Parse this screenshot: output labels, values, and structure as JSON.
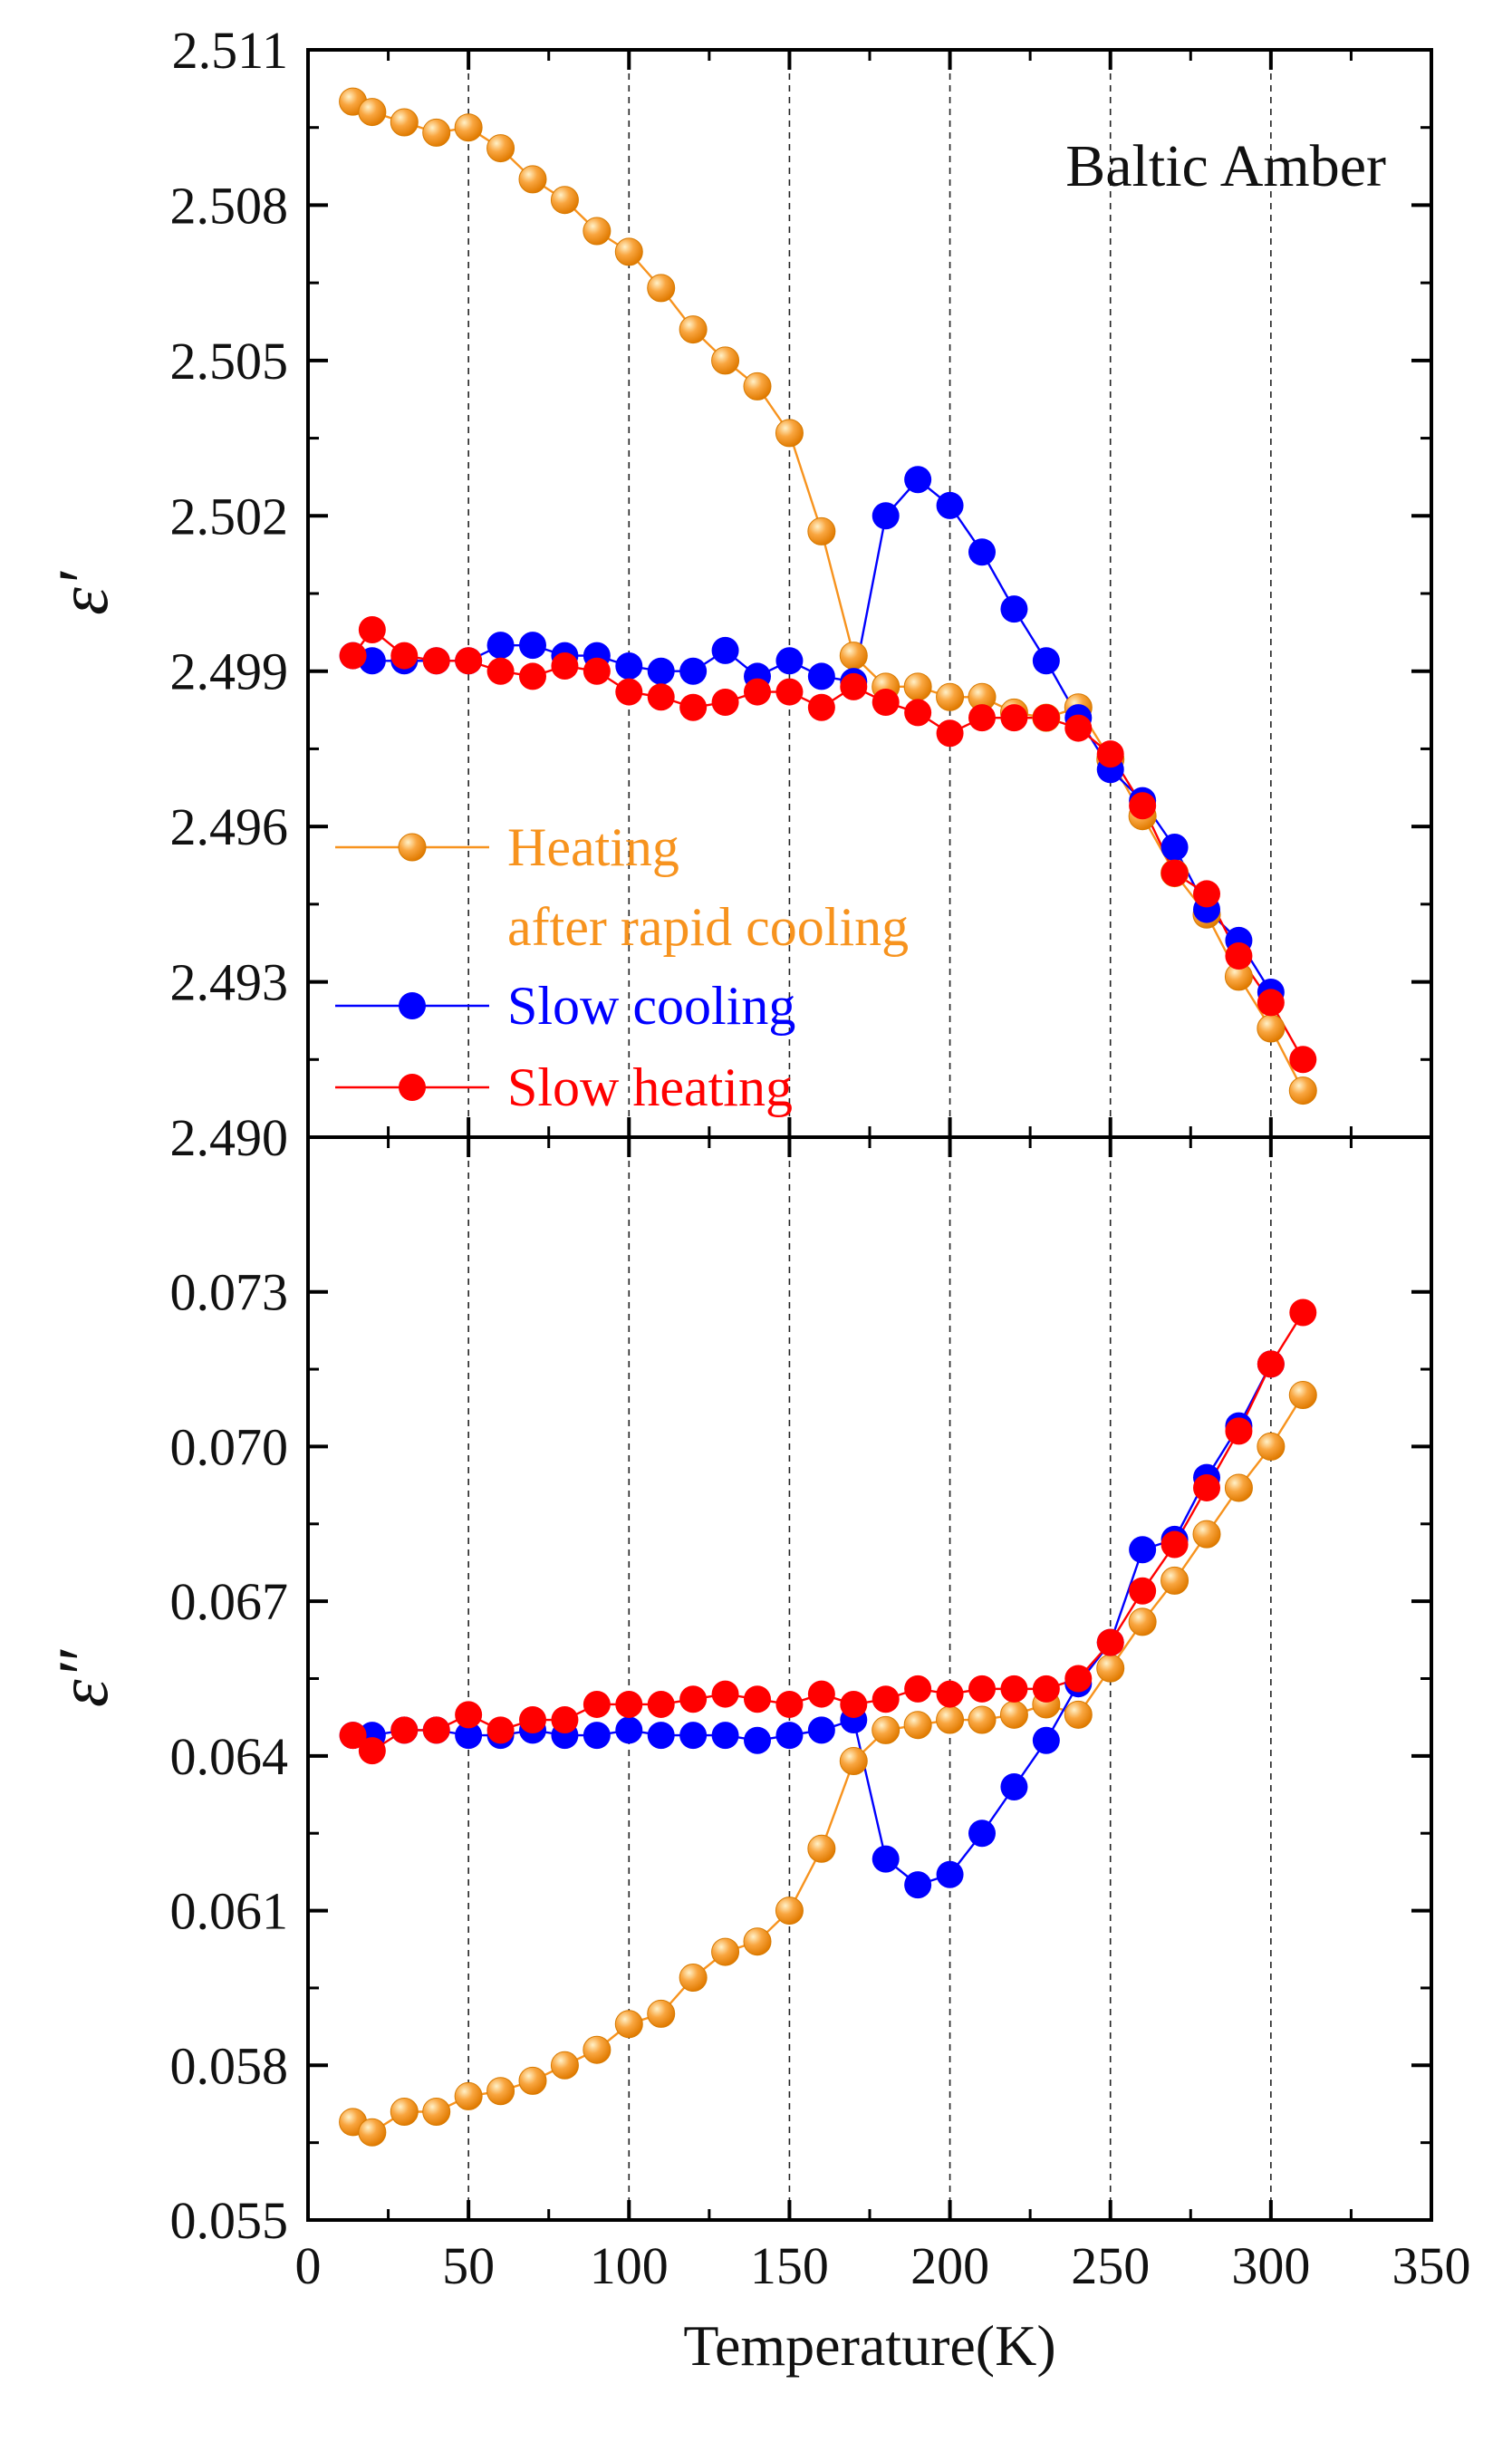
{
  "chart_data": [
    {
      "type": "line",
      "panel": "top",
      "ylabel": "ε′",
      "ylim": [
        2.49,
        2.511
      ],
      "yticks": [
        "2.490",
        "2.493",
        "2.496",
        "2.499",
        "2.502",
        "2.505",
        "2.508",
        "2.511"
      ],
      "xlim": [
        0,
        350
      ],
      "annotation": "Baltic Amber",
      "grid": "vertical dashed at 50,100,150,200,250,300",
      "legend_position": "lower-left",
      "series": [
        {
          "name": "Heating\nafter rapid cooling",
          "legend_line1": "Heating",
          "legend_line2": "after rapid cooling",
          "color": "#f7931e",
          "style": "orange-sphere",
          "x": [
            14,
            20,
            30,
            40,
            50,
            60,
            70,
            80,
            90,
            100,
            110,
            120,
            130,
            140,
            150,
            160,
            170,
            180,
            190,
            200,
            210,
            220,
            230,
            240,
            250,
            260,
            270,
            280,
            290,
            300,
            310
          ],
          "y": [
            2.51,
            2.5098,
            2.5096,
            2.5094,
            2.5095,
            2.5091,
            2.5085,
            2.5081,
            2.5075,
            2.5071,
            2.5064,
            2.5056,
            2.505,
            2.5045,
            2.5036,
            2.5017,
            2.4993,
            2.4987,
            2.4987,
            2.4985,
            2.4985,
            2.4982,
            2.4981,
            2.4983,
            2.4973,
            2.4962,
            2.4951,
            2.4943,
            2.4931,
            2.4921,
            2.4909
          ]
        },
        {
          "name": "Slow cooling",
          "color": "#0000ff",
          "style": "blue-dot",
          "x": [
            14,
            20,
            30,
            40,
            50,
            60,
            70,
            80,
            90,
            100,
            110,
            120,
            130,
            140,
            150,
            160,
            170,
            180,
            190,
            200,
            210,
            220,
            230,
            240,
            250,
            260,
            270,
            280,
            290,
            300
          ],
          "y": [
            2.4993,
            2.4992,
            2.4992,
            2.4992,
            2.4992,
            2.4995,
            2.4995,
            2.4993,
            2.4993,
            2.4991,
            2.499,
            2.499,
            2.4994,
            2.4989,
            2.4992,
            2.4989,
            2.4988,
            2.502,
            2.5027,
            2.5022,
            2.5013,
            2.5002,
            2.4992,
            2.4981,
            2.4971,
            2.4965,
            2.4956,
            2.4944,
            2.4938,
            2.4928
          ]
        },
        {
          "name": "Slow heating",
          "color": "#ff0000",
          "style": "red-dot",
          "x": [
            14,
            20,
            30,
            40,
            50,
            60,
            70,
            80,
            90,
            100,
            110,
            120,
            130,
            140,
            150,
            160,
            170,
            180,
            190,
            200,
            210,
            220,
            230,
            240,
            250,
            260,
            270,
            280,
            290,
            300,
            310
          ],
          "y": [
            2.4993,
            2.4998,
            2.4993,
            2.4992,
            2.4992,
            2.499,
            2.4989,
            2.4991,
            2.499,
            2.4986,
            2.4985,
            2.4983,
            2.4984,
            2.4986,
            2.4986,
            2.4983,
            2.4987,
            2.4984,
            2.4982,
            2.4978,
            2.4981,
            2.4981,
            2.4981,
            2.4979,
            2.4974,
            2.4964,
            2.4951,
            2.4947,
            2.4935,
            2.4926,
            2.4915
          ]
        }
      ]
    },
    {
      "type": "line",
      "panel": "bottom",
      "xlabel": "Temperature(K)",
      "ylabel": "ε″",
      "ylim": [
        0.055,
        0.076
      ],
      "yticks": [
        "0.055",
        "0.058",
        "0.061",
        "0.064",
        "0.067",
        "0.070",
        "0.073"
      ],
      "xlim": [
        0,
        350
      ],
      "xticks": [
        "0",
        "50",
        "100",
        "150",
        "200",
        "250",
        "300",
        "350"
      ],
      "grid": "vertical dashed at 50,100,150,200,250,300",
      "series": [
        {
          "name": "Heating\nafter rapid cooling",
          "color": "#f7931e",
          "style": "orange-sphere",
          "x": [
            14,
            20,
            30,
            40,
            50,
            60,
            70,
            80,
            90,
            100,
            110,
            120,
            130,
            140,
            150,
            160,
            170,
            180,
            190,
            200,
            210,
            220,
            230,
            240,
            250,
            260,
            270,
            280,
            290,
            300,
            310
          ],
          "y": [
            0.0569,
            0.0567,
            0.0571,
            0.0571,
            0.0574,
            0.0575,
            0.0577,
            0.058,
            0.0583,
            0.0588,
            0.059,
            0.0597,
            0.0602,
            0.0604,
            0.061,
            0.0622,
            0.0639,
            0.0645,
            0.0646,
            0.0647,
            0.0647,
            0.0648,
            0.065,
            0.0648,
            0.0657,
            0.0666,
            0.0674,
            0.0683,
            0.0692,
            0.07,
            0.071
          ]
        },
        {
          "name": "Slow cooling",
          "color": "#0000ff",
          "style": "blue-dot",
          "x": [
            14,
            20,
            30,
            40,
            50,
            60,
            70,
            80,
            90,
            100,
            110,
            120,
            130,
            140,
            150,
            160,
            170,
            180,
            190,
            200,
            210,
            220,
            230,
            240,
            250,
            260,
            270,
            280,
            290,
            300
          ],
          "y": [
            0.0644,
            0.0644,
            0.0645,
            0.0645,
            0.0644,
            0.0644,
            0.0645,
            0.0644,
            0.0644,
            0.0645,
            0.0644,
            0.0644,
            0.0644,
            0.0643,
            0.0644,
            0.0645,
            0.0647,
            0.062,
            0.0615,
            0.0617,
            0.0625,
            0.0634,
            0.0643,
            0.0654,
            0.0662,
            0.068,
            0.0682,
            0.0694,
            0.0704,
            0.0716
          ]
        },
        {
          "name": "Slow heating",
          "color": "#ff0000",
          "style": "red-dot",
          "x": [
            14,
            20,
            30,
            40,
            50,
            60,
            70,
            80,
            90,
            100,
            110,
            120,
            130,
            140,
            150,
            160,
            170,
            180,
            190,
            200,
            210,
            220,
            230,
            240,
            250,
            260,
            270,
            280,
            290,
            300,
            310
          ],
          "y": [
            0.0644,
            0.0641,
            0.0645,
            0.0645,
            0.0648,
            0.0645,
            0.0647,
            0.0647,
            0.065,
            0.065,
            0.065,
            0.0651,
            0.0652,
            0.0651,
            0.065,
            0.0652,
            0.065,
            0.0651,
            0.0653,
            0.0652,
            0.0653,
            0.0653,
            0.0653,
            0.0655,
            0.0662,
            0.0672,
            0.0681,
            0.0692,
            0.0703,
            0.0716,
            0.0726
          ]
        }
      ]
    }
  ]
}
